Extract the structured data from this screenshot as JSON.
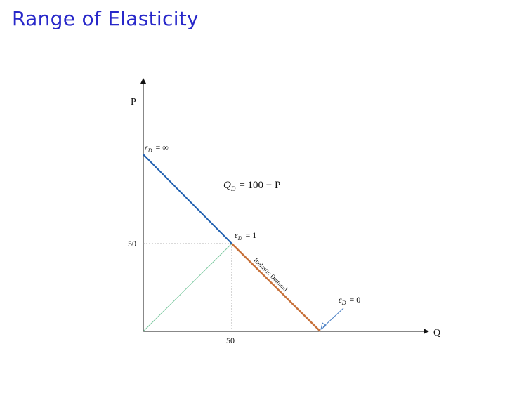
{
  "title": "Range of Elasticity",
  "axes": {
    "y_label": "P",
    "x_label": "Q",
    "y_tick": "50",
    "x_tick": "50"
  },
  "equation": {
    "lhs": "Q",
    "lhs_sub": "D",
    "rhs": "= 100 − P"
  },
  "annotations": {
    "eps_symbol": "ε",
    "eps_sub": "D",
    "top": "= ∞",
    "mid": "= 1",
    "bottom": "= 0",
    "inelastic_label": "Inelastic Demand"
  },
  "colors": {
    "title": "#2727c9",
    "elastic_segment": "#1f5fb0",
    "inelastic_segment": "#c8713a",
    "diagonal": "#7cc9a0",
    "guide": "#9a9a9a",
    "arrow": "#4a7fc4"
  }
}
